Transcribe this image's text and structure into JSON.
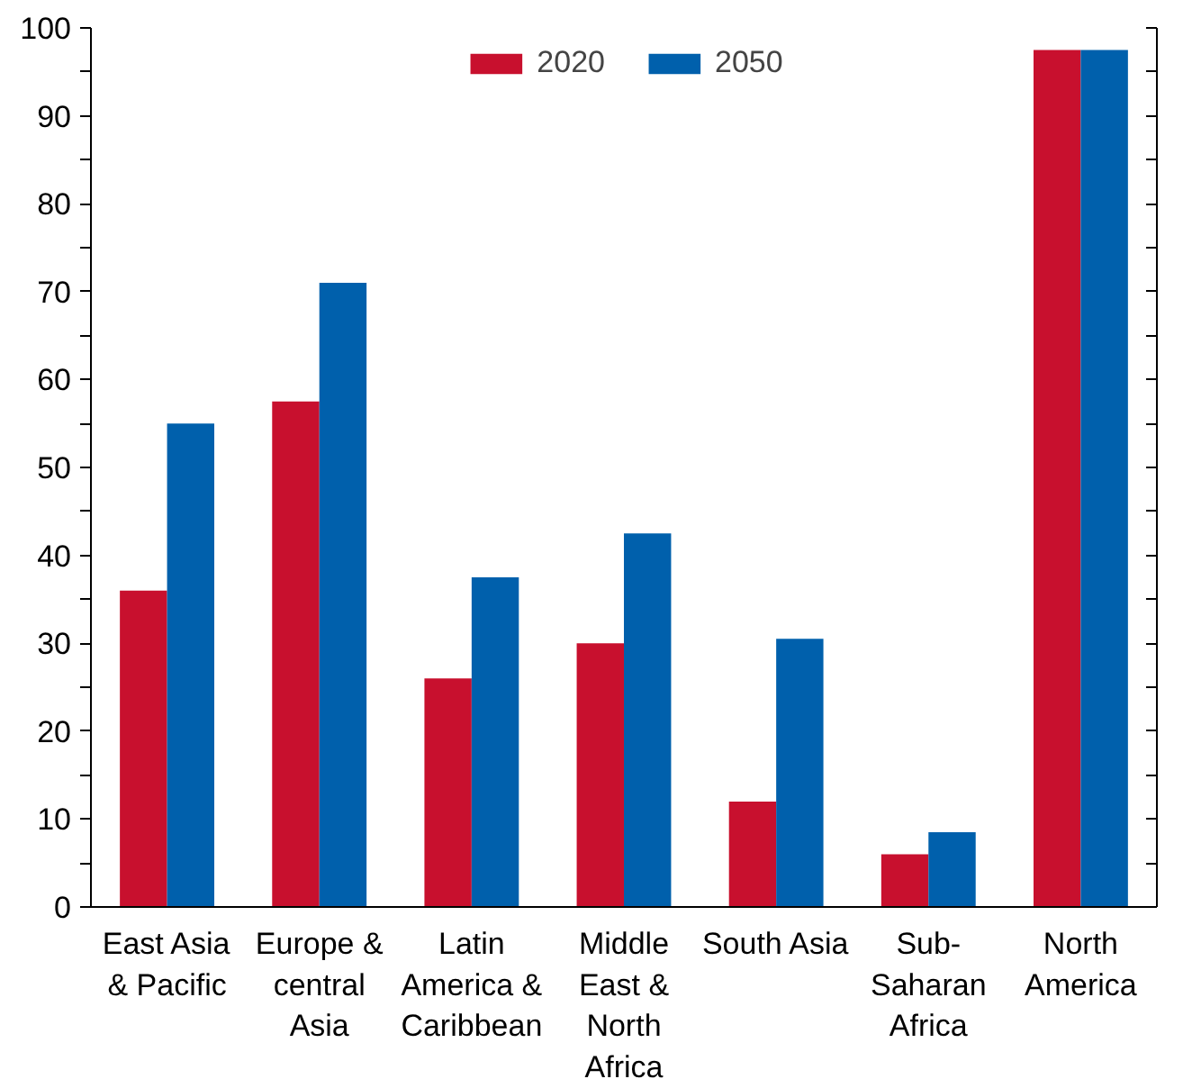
{
  "chart_data": {
    "type": "bar",
    "categories": [
      "East Asia & Pacific",
      "Europe & central Asia",
      "Latin America & Caribbean",
      "Middle East & North Africa",
      "South Asia",
      "Sub-Saharan Africa",
      "North America"
    ],
    "series": [
      {
        "name": "2020",
        "color": "#c8102e",
        "values": [
          36,
          57.5,
          26,
          30,
          12,
          6,
          97.5
        ]
      },
      {
        "name": "2050",
        "color": "#0060ac",
        "values": [
          55,
          71,
          37.5,
          42.5,
          30.5,
          8.5,
          97.5
        ]
      }
    ],
    "ylim": [
      0,
      100
    ],
    "yticks": [
      0,
      {
        "value": 5,
        "label": null
      },
      10,
      {
        "value": 15,
        "label": null
      },
      20,
      {
        "value": 25,
        "label": null
      },
      30,
      {
        "value": 35,
        "label": null
      },
      40,
      {
        "value": 45,
        "label": null
      },
      50,
      {
        "value": 55,
        "label": null
      },
      60,
      {
        "value": 65,
        "label": null
      },
      70,
      {
        "value": 75,
        "label": null
      },
      80,
      {
        "value": 85,
        "label": null
      },
      90,
      {
        "value": 95,
        "label": null
      },
      100
    ],
    "grid": false,
    "legend": "top"
  }
}
